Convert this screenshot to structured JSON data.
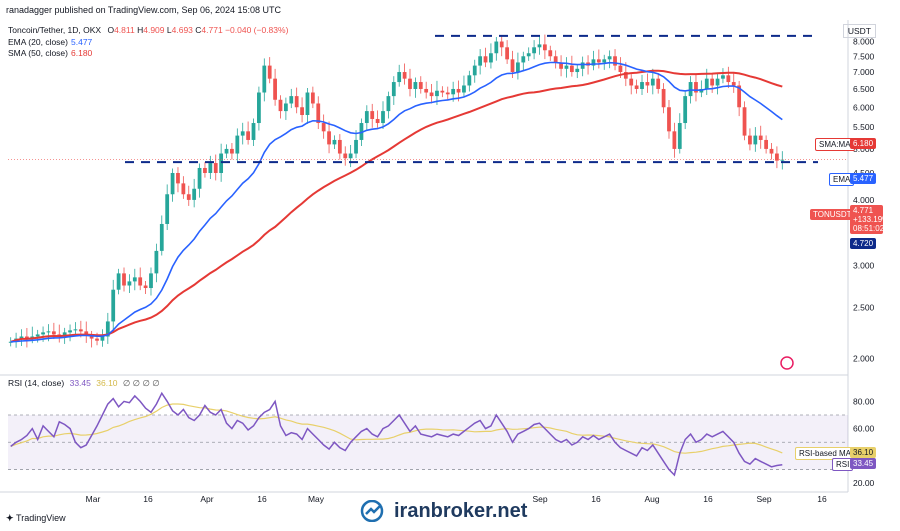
{
  "header": {
    "published": "ranadagger published on TradingView.com, Sep 06, 2024 15:08 UTC",
    "symbol_line": "Toncoin/Tether, 1D, OKX",
    "ohlc": {
      "o_label": "O",
      "o": "4.811",
      "h_label": "H",
      "h": "4.909",
      "l_label": "L",
      "l": "4.693",
      "c_label": "C",
      "c": "4.771",
      "chg": "−0.040 (−0.83%)"
    },
    "ema_label": "EMA (20, close)",
    "ema_value": "5.477",
    "sma_label": "SMA (50, close)",
    "sma_value": "6.180",
    "rsi_label": "RSI (14, close)",
    "rsi_value": "33.45",
    "rsi_extra": "36.10",
    "rsi_zeros": "∅ ∅ ∅ ∅"
  },
  "currency": "USDT",
  "tags": {
    "sma": "SMA:MA",
    "sma_val": "6.180",
    "ema": "EMA",
    "ema_val": "5.477",
    "symbol": "TONUSDT",
    "price": "4.771",
    "pct": "+133.19%",
    "countdown": "08:51:02",
    "support": "4.720",
    "rsi_ma": "RSI-based MA",
    "rsi_ma_val": "36.10",
    "rsi": "RSI",
    "rsi_val": "33.45"
  },
  "brand": "TradingView",
  "watermark": "iranbroker.net",
  "colors": {
    "up": "#26a69a",
    "down": "#ef5350",
    "ema": "#2962ff",
    "sma": "#e53935",
    "rsi": "#7e57c2",
    "rsi_ma": "#e8d06a",
    "level": "#0d2a8a"
  },
  "chart_data": [
    {
      "type": "candlestick",
      "title": "Toncoin/Tether, 1D, OKX",
      "x_ticks": [
        "Mar",
        "16",
        "Apr",
        "16",
        "May",
        "Sep",
        "16",
        "Aug",
        "16",
        "Sep",
        "16"
      ],
      "y_ticks": [
        2.0,
        2.5,
        3.0,
        3.5,
        4.0,
        4.5,
        5.0,
        5.5,
        6.0,
        6.5,
        7.0,
        7.5,
        8.0
      ],
      "scale": "log",
      "ylim": [
        1.9,
        8.6
      ],
      "levels": [
        8.2,
        4.72
      ],
      "series": [
        {
          "name": "Close",
          "values": [
            2.15,
            2.18,
            2.2,
            2.18,
            2.2,
            2.22,
            2.24,
            2.25,
            2.22,
            2.2,
            2.24,
            2.26,
            2.27,
            2.25,
            2.21,
            2.18,
            2.16,
            2.2,
            2.35,
            2.7,
            2.9,
            2.75,
            2.8,
            2.85,
            2.75,
            2.72,
            2.9,
            3.2,
            3.6,
            4.1,
            4.5,
            4.3,
            4.1,
            4.0,
            4.2,
            4.6,
            4.5,
            4.7,
            4.5,
            4.9,
            5.0,
            4.9,
            5.3,
            5.4,
            5.2,
            5.6,
            6.4,
            7.2,
            6.8,
            6.2,
            5.9,
            6.1,
            6.3,
            6.0,
            5.8,
            6.4,
            6.1,
            5.6,
            5.4,
            5.1,
            5.2,
            4.9,
            4.8,
            4.9,
            5.2,
            5.6,
            5.9,
            5.7,
            5.6,
            5.9,
            6.3,
            6.7,
            7.0,
            6.8,
            6.5,
            6.7,
            6.5,
            6.4,
            6.3,
            6.45,
            6.4,
            6.35,
            6.5,
            6.4,
            6.6,
            6.9,
            7.2,
            7.5,
            7.3,
            7.6,
            8.0,
            7.8,
            7.4,
            7.0,
            7.3,
            7.5,
            7.6,
            7.8,
            7.9,
            7.7,
            7.5,
            7.3,
            7.1,
            7.2,
            7.0,
            7.1,
            7.3,
            7.2,
            7.4,
            7.3,
            7.4,
            7.5,
            7.2,
            7.0,
            6.8,
            6.6,
            6.5,
            6.7,
            6.6,
            6.8,
            6.5,
            6.0,
            5.4,
            5.0,
            5.6,
            6.3,
            6.7,
            6.4,
            6.5,
            6.8,
            6.6,
            6.8,
            6.9,
            6.7,
            6.6,
            6.0,
            5.3,
            5.1,
            5.3,
            5.2,
            5.0,
            4.9,
            4.75,
            4.77
          ]
        },
        {
          "name": "EMA (20, close)",
          "last": 5.477
        },
        {
          "name": "SMA (50, close)",
          "last": 6.18
        }
      ]
    },
    {
      "type": "line",
      "title": "RSI (14, close)",
      "y_ticks": [
        20,
        40,
        60,
        80
      ],
      "ylim": [
        15,
        92
      ],
      "band": [
        30,
        70
      ],
      "series": [
        {
          "name": "RSI",
          "values": [
            47,
            50,
            52,
            55,
            60,
            52,
            62,
            58,
            54,
            65,
            63,
            60,
            50,
            46,
            48,
            55,
            62,
            70,
            78,
            82,
            76,
            80,
            79,
            84,
            80,
            75,
            72,
            78,
            86,
            80,
            73,
            70,
            74,
            68,
            66,
            70,
            77,
            72,
            70,
            74,
            64,
            60,
            66,
            64,
            59,
            62,
            68,
            72,
            74,
            80,
            62,
            55,
            57,
            56,
            52,
            60,
            56,
            52,
            48,
            45,
            50,
            46,
            44,
            50,
            54,
            58,
            60,
            56,
            54,
            60,
            62,
            66,
            70,
            64,
            58,
            62,
            56,
            55,
            54,
            56,
            55,
            54,
            56,
            55,
            58,
            61,
            64,
            66,
            60,
            62,
            70,
            64,
            58,
            50,
            56,
            58,
            60,
            63,
            64,
            60,
            56,
            52,
            50,
            52,
            48,
            50,
            54,
            52,
            55,
            52,
            54,
            56,
            50,
            46,
            44,
            42,
            40,
            46,
            44,
            48,
            42,
            36,
            30,
            26,
            42,
            52,
            56,
            50,
            52,
            56,
            54,
            56,
            58,
            54,
            50,
            42,
            36,
            34,
            38,
            36,
            34,
            32,
            33,
            33.45
          ]
        },
        {
          "name": "RSI-based MA",
          "last": 36.1
        }
      ]
    }
  ]
}
